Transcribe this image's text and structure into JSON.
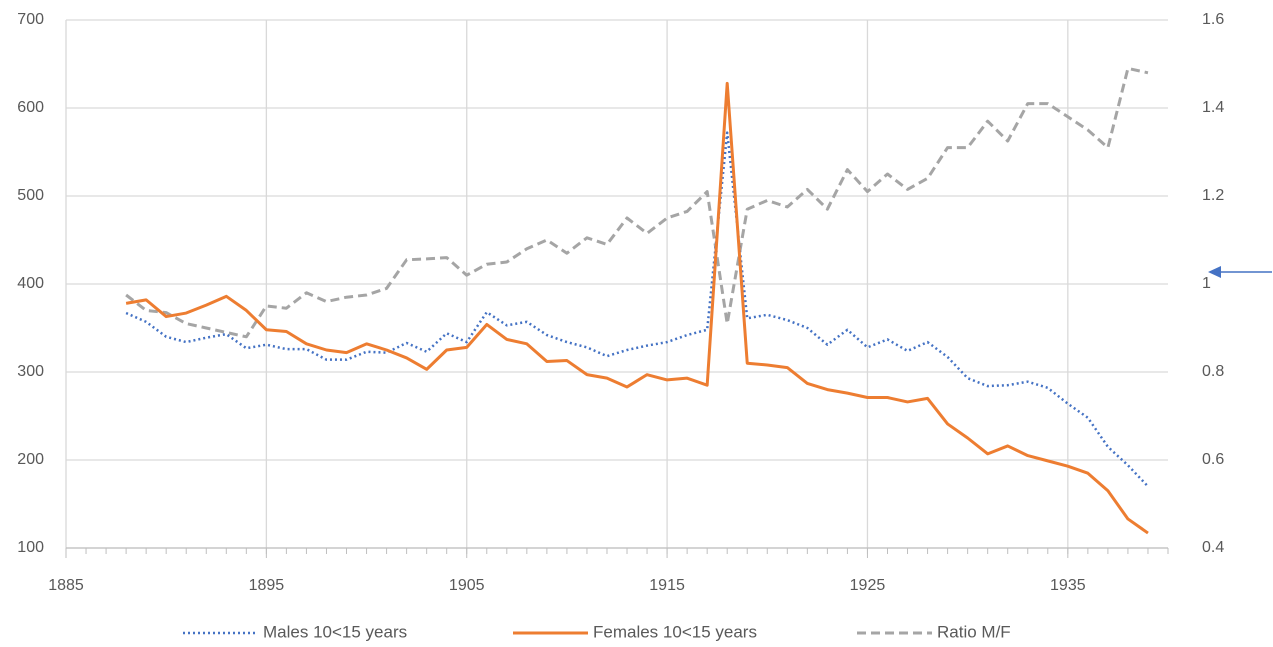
{
  "chart_data": {
    "type": "line",
    "x": [
      1888,
      1889,
      1890,
      1891,
      1892,
      1893,
      1894,
      1895,
      1896,
      1897,
      1898,
      1899,
      1900,
      1901,
      1902,
      1903,
      1904,
      1905,
      1906,
      1907,
      1908,
      1909,
      1910,
      1911,
      1912,
      1913,
      1914,
      1915,
      1916,
      1917,
      1918,
      1919,
      1920,
      1921,
      1922,
      1923,
      1924,
      1925,
      1926,
      1927,
      1928,
      1929,
      1930,
      1931,
      1932,
      1933,
      1934,
      1935,
      1936,
      1937,
      1938,
      1939
    ],
    "series": [
      {
        "name": "Males 10<15 years",
        "color": "#4472c4",
        "style": "dotted",
        "values": [
          367,
          357,
          340,
          334,
          339,
          343,
          327,
          331,
          326,
          326,
          314,
          314,
          323,
          322,
          333,
          323,
          344,
          334,
          368,
          353,
          357,
          342,
          334,
          328,
          318,
          325,
          330,
          334,
          342,
          348,
          572,
          361,
          365,
          359,
          350,
          331,
          348,
          328,
          337,
          324,
          334,
          317,
          293,
          284,
          285,
          289,
          282,
          264,
          248,
          215,
          194,
          170
        ]
      },
      {
        "name": "Females 10<15 years",
        "color": "#ed7d31",
        "style": "solid",
        "values": [
          378,
          382,
          363,
          367,
          376,
          386,
          370,
          348,
          346,
          332,
          325,
          322,
          332,
          325,
          316,
          303,
          325,
          328,
          354,
          337,
          332,
          312,
          313,
          297,
          293,
          283,
          297,
          291,
          293,
          285,
          628,
          310,
          308,
          305,
          287,
          280,
          276,
          271,
          271,
          266,
          270,
          241,
          225,
          207,
          216,
          205,
          199,
          193,
          185,
          165,
          133,
          117
        ]
      },
      {
        "name": "Ratio M/F",
        "color": "#a5a5a5",
        "style": "dashed",
        "axis": "y2",
        "values": [
          0.975,
          0.94,
          0.935,
          0.91,
          0.9,
          0.89,
          0.88,
          0.95,
          0.945,
          0.98,
          0.96,
          0.97,
          0.975,
          0.99,
          1.055,
          1.057,
          1.06,
          1.02,
          1.045,
          1.05,
          1.08,
          1.1,
          1.07,
          1.105,
          1.09,
          1.15,
          1.115,
          1.15,
          1.165,
          1.21,
          0.91,
          1.17,
          1.19,
          1.175,
          1.215,
          1.17,
          1.26,
          1.21,
          1.25,
          1.215,
          1.24,
          1.31,
          1.31,
          1.37,
          1.325,
          1.41,
          1.41,
          1.38,
          1.35,
          1.31,
          1.49,
          1.48
        ]
      }
    ],
    "xlim": [
      1885,
      1940
    ],
    "xticks": [
      1885,
      1895,
      1905,
      1915,
      1925,
      1935
    ],
    "ylim": [
      100,
      700
    ],
    "yticks": [
      100,
      200,
      300,
      400,
      500,
      600,
      700
    ],
    "y2lim": [
      0.4,
      1.6
    ],
    "y2ticks": [
      0.4,
      0.6,
      0.8,
      1,
      1.2,
      1.4,
      1.6
    ],
    "grid": true,
    "legend": "bottom"
  }
}
